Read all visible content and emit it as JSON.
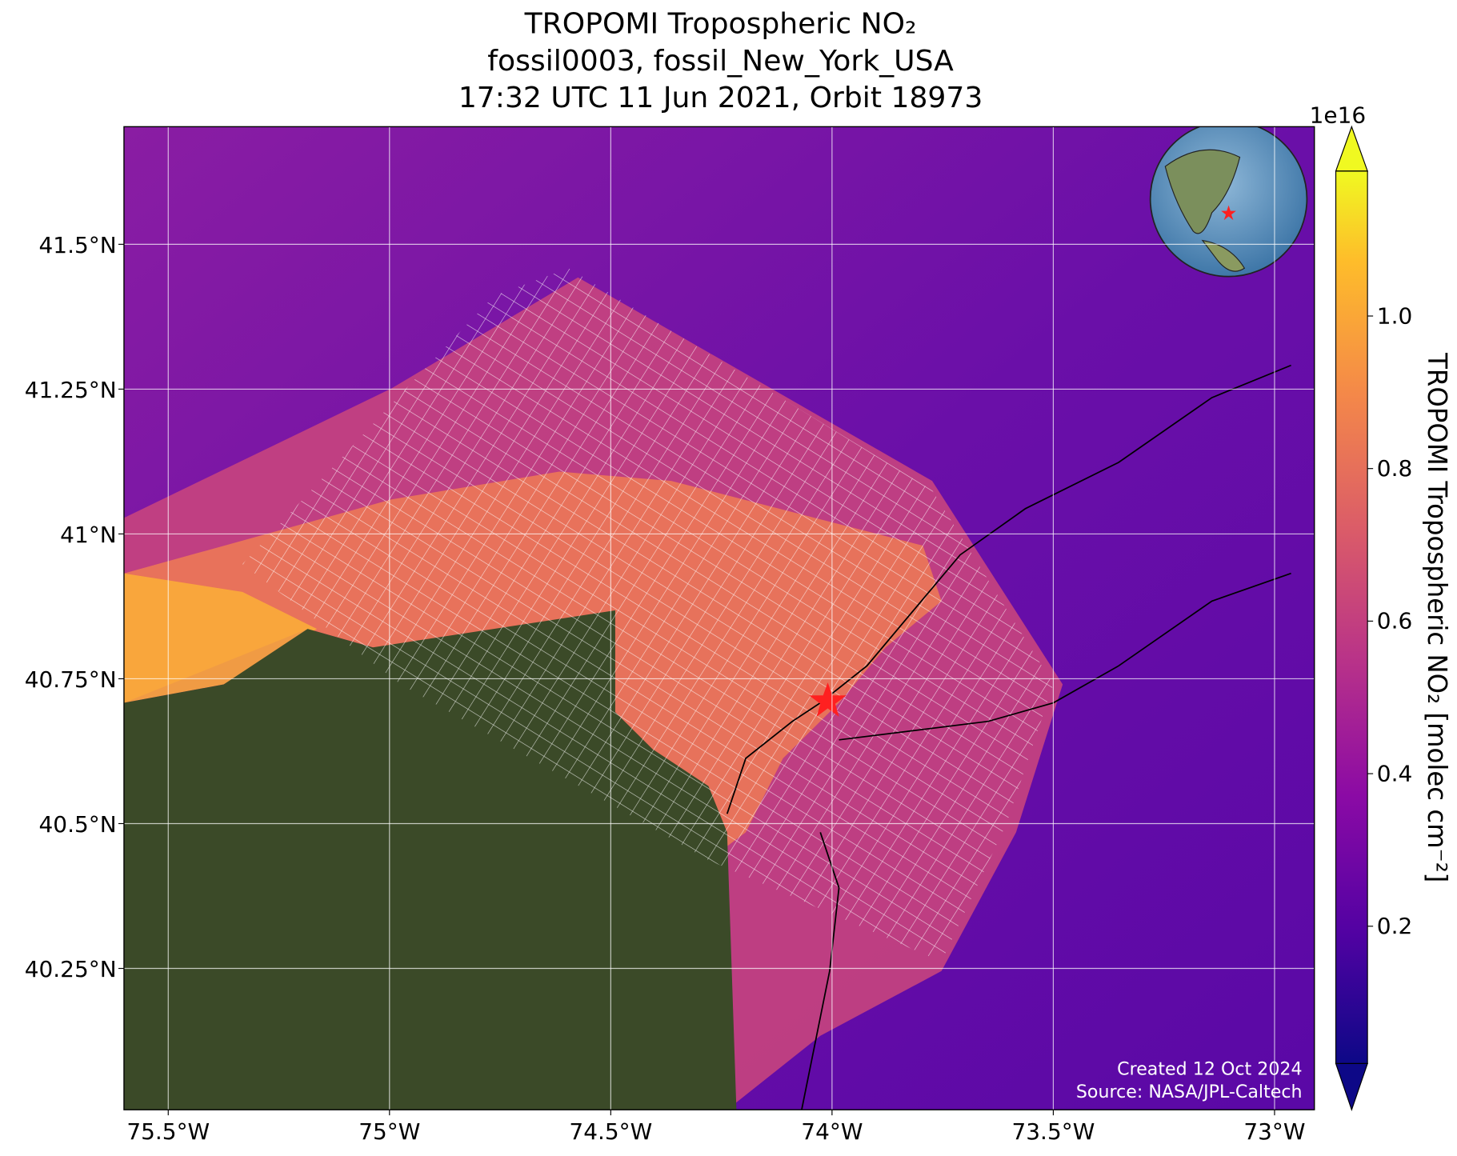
{
  "title": [
    "TROPOMI Tropospheric NO₂",
    "fossil0003, fossil_New_York_USA",
    "17:32 UTC 11 Jun 2021, Orbit 18973"
  ],
  "map": {
    "xlim": [
      -75.6,
      -72.91
    ],
    "ylim": [
      40.006,
      41.703
    ],
    "xticks": [
      {
        "value": -75.5,
        "label": "75.5°W"
      },
      {
        "value": -75,
        "label": "75°W"
      },
      {
        "value": -74.5,
        "label": "74.5°W"
      },
      {
        "value": -74,
        "label": "74°W"
      },
      {
        "value": -73.5,
        "label": "73.5°W"
      },
      {
        "value": -73,
        "label": "73°W"
      }
    ],
    "yticks": [
      {
        "value": 40.25,
        "label": "40.25°N"
      },
      {
        "value": 40.5,
        "label": "40.5°N"
      },
      {
        "value": 40.75,
        "label": "40.75°N"
      },
      {
        "value": 41,
        "label": "41°N"
      },
      {
        "value": 41.25,
        "label": "41.25°N"
      },
      {
        "value": 41.5,
        "label": "41.5°N"
      }
    ],
    "grid": true
  },
  "colorbar": {
    "label": "TROPOMI Tropospheric NO₂ [molec cm⁻²]",
    "multiplier": "1e16",
    "clim": [
      0.02,
      1.19
    ],
    "ticks": [
      0.2,
      0.4,
      0.6,
      0.8,
      {
        "value": 1,
        "label": "1.0"
      }
    ],
    "extend": "both"
  },
  "credits": [
    "Created 12 Oct 2024",
    "Source: NASA/JPL-Caltech"
  ]
}
